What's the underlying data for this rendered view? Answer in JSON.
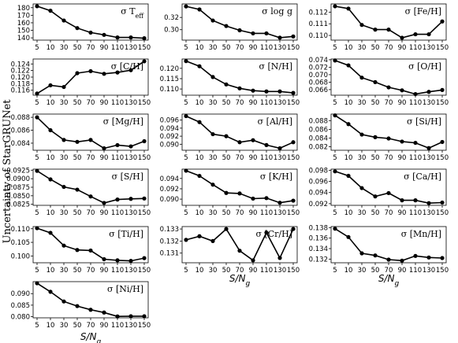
{
  "figure": {
    "ylabel": "Uncertainty of StarGRUNet",
    "xlabel_main": "S/N",
    "xlabel_sub": "g"
  },
  "chart_data": [
    {
      "type": "line",
      "label_prefix": "σ ",
      "label_main": "T",
      "label_sub": "eff",
      "x": [
        "5",
        "10",
        "30",
        "50",
        "70",
        "90",
        "110",
        "130",
        "150"
      ],
      "values": [
        182,
        176,
        163,
        153,
        147,
        144,
        140.5,
        140.5,
        139.5
      ],
      "yticks": [
        140,
        150,
        160,
        170,
        180
      ],
      "ylim": [
        137,
        185
      ]
    },
    {
      "type": "line",
      "label_prefix": "σ ",
      "label_main": "log g",
      "label_sub": "",
      "x": [
        "5",
        "10",
        "30",
        "50",
        "70",
        "90",
        "110",
        "130",
        "150"
      ],
      "values": [
        0.338,
        0.333,
        0.315,
        0.306,
        0.299,
        0.294,
        0.294,
        0.287,
        0.289
      ],
      "yticks": [
        0.3,
        0.32
      ],
      "ylim": [
        0.283,
        0.342
      ]
    },
    {
      "type": "line",
      "label_prefix": "σ ",
      "label_main": "[Fe/H]",
      "label_sub": "",
      "x": [
        "5",
        "10",
        "30",
        "50",
        "70",
        "90",
        "110",
        "130",
        "150"
      ],
      "values": [
        0.1125,
        0.1123,
        0.1109,
        0.1105,
        0.1105,
        0.1098,
        0.1101,
        0.1101,
        0.1112
      ],
      "yticks": [
        0.11,
        0.111,
        0.112
      ],
      "ylim": [
        0.1096,
        0.1127
      ]
    },
    {
      "type": "line",
      "label_prefix": "σ ",
      "label_main": "[C/H]",
      "label_sub": "",
      "x": [
        "5",
        "10",
        "30",
        "50",
        "70",
        "90",
        "110",
        "130",
        "150"
      ],
      "values": [
        0.115,
        0.1175,
        0.117,
        0.1212,
        0.1218,
        0.121,
        0.1214,
        0.1221,
        0.1248
      ],
      "yticks": [
        0.116,
        0.118,
        0.12,
        0.122,
        0.124
      ],
      "ylim": [
        0.1145,
        0.1255
      ]
    },
    {
      "type": "line",
      "label_prefix": "σ ",
      "label_main": "[N/H]",
      "label_sub": "",
      "x": [
        "5",
        "10",
        "30",
        "50",
        "70",
        "90",
        "110",
        "130",
        "150"
      ],
      "values": [
        0.1235,
        0.121,
        0.1158,
        0.1122,
        0.1103,
        0.1092,
        0.1088,
        0.1088,
        0.1081
      ],
      "yticks": [
        0.11,
        0.115,
        0.12
      ],
      "ylim": [
        0.107,
        0.1245
      ]
    },
    {
      "type": "line",
      "label_prefix": "σ ",
      "label_main": "[O/H]",
      "label_sub": "",
      "x": [
        "5",
        "10",
        "30",
        "50",
        "70",
        "90",
        "110",
        "130",
        "150"
      ],
      "values": [
        0.0738,
        0.0725,
        0.0692,
        0.068,
        0.0666,
        0.0658,
        0.0648,
        0.0654,
        0.0659
      ],
      "yticks": [
        0.066,
        0.068,
        0.07,
        0.072,
        0.074
      ],
      "ylim": [
        0.0645,
        0.0742
      ]
    },
    {
      "type": "line",
      "label_prefix": "σ ",
      "label_main": "[Mg/H]",
      "label_sub": "",
      "x": [
        "5",
        "10",
        "30",
        "50",
        "70",
        "90",
        "110",
        "130",
        "150"
      ],
      "values": [
        0.088,
        0.086,
        0.0845,
        0.0842,
        0.0845,
        0.0832,
        0.0837,
        0.0835,
        0.0843
      ],
      "yticks": [
        0.084,
        0.086,
        0.088
      ],
      "ylim": [
        0.0829,
        0.0885
      ]
    },
    {
      "type": "line",
      "label_prefix": "σ ",
      "label_main": "[Al/H]",
      "label_sub": "",
      "x": [
        "5",
        "10",
        "30",
        "50",
        "70",
        "90",
        "110",
        "130",
        "150"
      ],
      "values": [
        0.097,
        0.0955,
        0.0925,
        0.092,
        0.0905,
        0.091,
        0.0898,
        0.089,
        0.0905
      ],
      "yticks": [
        0.09,
        0.092,
        0.094,
        0.096
      ],
      "ylim": [
        0.0885,
        0.0975
      ]
    },
    {
      "type": "line",
      "label_prefix": "σ ",
      "label_main": "[Si/H]",
      "label_sub": "",
      "x": [
        "5",
        "10",
        "30",
        "50",
        "70",
        "90",
        "110",
        "130",
        "150"
      ],
      "values": [
        0.0892,
        0.0872,
        0.0848,
        0.0842,
        0.0839,
        0.0832,
        0.0829,
        0.0817,
        0.0831
      ],
      "yticks": [
        0.082,
        0.084,
        0.086,
        0.088
      ],
      "ylim": [
        0.0812,
        0.0895
      ]
    },
    {
      "type": "line",
      "label_prefix": "σ ",
      "label_main": "[S/H]",
      "label_sub": "",
      "x": [
        "5",
        "10",
        "30",
        "50",
        "70",
        "90",
        "110",
        "130",
        "150"
      ],
      "values": [
        0.0923,
        0.0898,
        0.0876,
        0.0868,
        0.0848,
        0.0829,
        0.0839,
        0.0841,
        0.0842
      ],
      "yticks": [
        0.0825,
        0.085,
        0.0875,
        0.09,
        0.0925
      ],
      "ylim": [
        0.0822,
        0.0928
      ]
    },
    {
      "type": "line",
      "label_prefix": "σ ",
      "label_main": "[K/H]",
      "label_sub": "",
      "x": [
        "5",
        "10",
        "30",
        "50",
        "70",
        "90",
        "110",
        "130",
        "150"
      ],
      "values": [
        0.0955,
        0.0945,
        0.0928,
        0.0912,
        0.0911,
        0.0901,
        0.0902,
        0.0893,
        0.0897
      ],
      "yticks": [
        0.09,
        0.092,
        0.094
      ],
      "ylim": [
        0.0888,
        0.0958
      ]
    },
    {
      "type": "line",
      "label_prefix": "σ ",
      "label_main": "[Ca/H]",
      "label_sub": "",
      "x": [
        "5",
        "10",
        "30",
        "50",
        "70",
        "90",
        "110",
        "130",
        "150"
      ],
      "values": [
        0.0978,
        0.097,
        0.0948,
        0.0933,
        0.0939,
        0.0926,
        0.0926,
        0.0921,
        0.0922
      ],
      "yticks": [
        0.092,
        0.094,
        0.096,
        0.098
      ],
      "ylim": [
        0.0917,
        0.0982
      ]
    },
    {
      "type": "line",
      "label_prefix": "σ ",
      "label_main": "[Ti/H]",
      "label_sub": "",
      "x": [
        "5",
        "10",
        "30",
        "50",
        "70",
        "90",
        "110",
        "130",
        "150"
      ],
      "values": [
        0.1102,
        0.1085,
        0.1038,
        0.1022,
        0.102,
        0.0988,
        0.0984,
        0.0982,
        0.0992
      ],
      "yticks": [
        0.1,
        0.105,
        0.11
      ],
      "ylim": [
        0.0975,
        0.1108
      ]
    },
    {
      "type": "line",
      "label_prefix": "σ ",
      "label_main": "[Cr/H]",
      "label_sub": "",
      "x": [
        "5",
        "10",
        "30",
        "50",
        "70",
        "90",
        "110",
        "130",
        "150"
      ],
      "values": [
        0.1321,
        0.1324,
        0.132,
        0.133,
        0.1312,
        0.1304,
        0.1327,
        0.1306,
        0.133
      ],
      "yticks": [
        0.131,
        0.132,
        0.133
      ],
      "ylim": [
        0.1302,
        0.1332
      ]
    },
    {
      "type": "line",
      "label_prefix": "σ ",
      "label_main": "[Mn/H]",
      "label_sub": "",
      "x": [
        "5",
        "10",
        "30",
        "50",
        "70",
        "90",
        "110",
        "130",
        "150"
      ],
      "values": [
        0.1378,
        0.1362,
        0.1331,
        0.1327,
        0.1319,
        0.1317,
        0.1326,
        0.1323,
        0.1322
      ],
      "yticks": [
        0.132,
        0.134,
        0.136,
        0.138
      ],
      "ylim": [
        0.1313,
        0.1382
      ]
    },
    {
      "type": "line",
      "label_prefix": "σ ",
      "label_main": "[Ni/H]",
      "label_sub": "",
      "x": [
        "5",
        "10",
        "30",
        "50",
        "70",
        "90",
        "110",
        "130",
        "150"
      ],
      "values": [
        0.0945,
        0.0908,
        0.0866,
        0.0846,
        0.083,
        0.0818,
        0.0801,
        0.0802,
        0.0802
      ],
      "yticks": [
        0.08,
        0.085,
        0.09
      ],
      "ylim": [
        0.0795,
        0.0952
      ]
    }
  ]
}
